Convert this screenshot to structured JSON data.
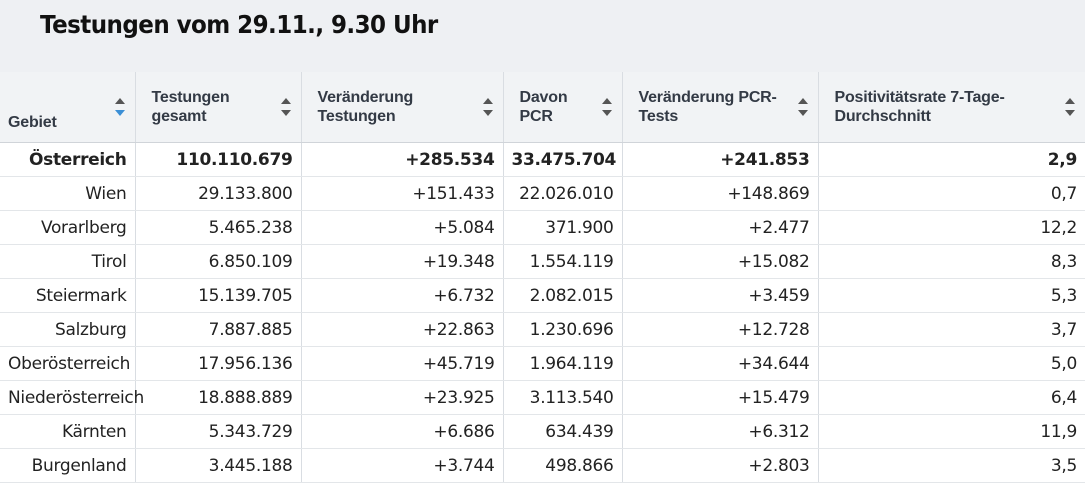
{
  "title": "Testungen vom 29.11., 9.30 Uhr",
  "columns": [
    {
      "label": "Gebiet",
      "sort_icon": "sort-icon-active"
    },
    {
      "label": "Testungen gesamt",
      "sort_icon": "sort-icon"
    },
    {
      "label": "Veränderung Testungen",
      "sort_icon": "sort-icon"
    },
    {
      "label": "Davon PCR",
      "sort_icon": "sort-icon"
    },
    {
      "label": "Veränderung PCR-Tests",
      "sort_icon": "sort-icon"
    },
    {
      "label": "Positivitätsrate 7-Tage-Durchschnitt",
      "sort_icon": "sort-icon"
    }
  ],
  "rows": [
    [
      "Österreich",
      "110.110.679",
      "+285.534",
      "33.475.704",
      "+241.853",
      "2,9"
    ],
    [
      "Wien",
      "29.133.800",
      "+151.433",
      "22.026.010",
      "+148.869",
      "0,7"
    ],
    [
      "Vorarlberg",
      "5.465.238",
      "+5.084",
      "371.900",
      "+2.477",
      "12,2"
    ],
    [
      "Tirol",
      "6.850.109",
      "+19.348",
      "1.554.119",
      "+15.082",
      "8,3"
    ],
    [
      "Steiermark",
      "15.139.705",
      "+6.732",
      "2.082.015",
      "+3.459",
      "5,3"
    ],
    [
      "Salzburg",
      "7.887.885",
      "+22.863",
      "1.230.696",
      "+12.728",
      "3,7"
    ],
    [
      "Oberösterreich",
      "17.956.136",
      "+45.719",
      "1.964.119",
      "+34.644",
      "5,0"
    ],
    [
      "Niederösterreich",
      "18.888.889",
      "+23.925",
      "3.113.540",
      "+15.479",
      "6,4"
    ],
    [
      "Kärnten",
      "5.343.729",
      "+6.686",
      "634.439",
      "+6.312",
      "11,9"
    ],
    [
      "Burgenland",
      "3.445.188",
      "+3.744",
      "498.866",
      "+2.803",
      "3,5"
    ]
  ],
  "colors": {
    "header_bg": "#eef0f3",
    "sort_active": "#3b8fd6"
  }
}
